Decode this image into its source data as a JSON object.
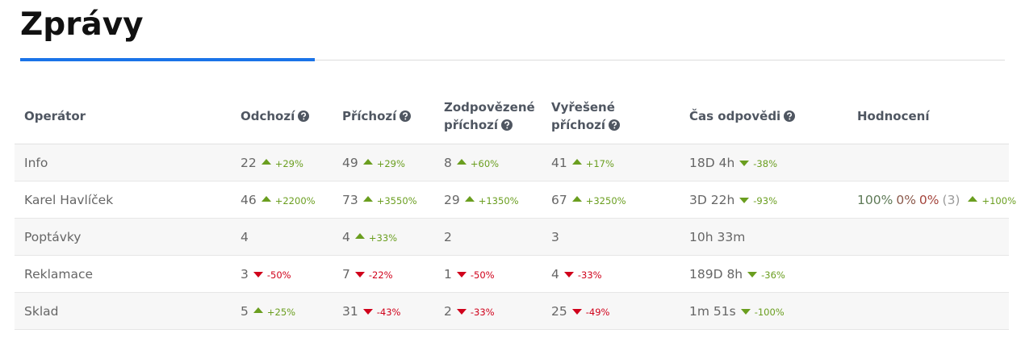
{
  "header": {
    "title": "Zprávy"
  },
  "table": {
    "columns": [
      {
        "label": "Operátor"
      },
      {
        "label": "Odchozí",
        "help": true
      },
      {
        "label": "Příchozí",
        "help": true
      },
      {
        "label": "Zodpovězené příchozí",
        "help": true
      },
      {
        "label": "Vyřešené příchozí",
        "help": true
      },
      {
        "label": "Čas odpovědi",
        "help": true
      },
      {
        "label": "Hodnocení"
      }
    ],
    "rows": [
      {
        "operator": "Info",
        "cells": [
          {
            "value": "22",
            "change": "+29%",
            "arrow": "up",
            "color": "#6a9e1f"
          },
          {
            "value": "49",
            "change": "+29%",
            "arrow": "up",
            "color": "#6a9e1f"
          },
          {
            "value": "8",
            "change": "+60%",
            "arrow": "up",
            "color": "#6a9e1f"
          },
          {
            "value": "41",
            "change": "+17%",
            "arrow": "up",
            "color": "#6a9e1f"
          },
          {
            "value": "18D 4h",
            "change": "-38%",
            "arrow": "down",
            "color": "#6a9e1f"
          }
        ]
      },
      {
        "operator": "Karel Havlíček",
        "cells": [
          {
            "value": "46",
            "change": "+2200%",
            "arrow": "up",
            "color": "#6a9e1f"
          },
          {
            "value": "73",
            "change": "+3550%",
            "arrow": "up",
            "color": "#6a9e1f"
          },
          {
            "value": "29",
            "change": "+1350%",
            "arrow": "up",
            "color": "#6a9e1f"
          },
          {
            "value": "67",
            "change": "+3250%",
            "arrow": "up",
            "color": "#6a9e1f"
          },
          {
            "value": "3D 22h",
            "change": "-93%",
            "arrow": "down",
            "color": "#6a9e1f"
          }
        ],
        "rating": {
          "parts": [
            {
              "text": "100%",
              "color": "#5e7a57"
            },
            {
              "text": "0%",
              "color": "#8c5a4c"
            },
            {
              "text": "0%",
              "color": "#a4443c"
            },
            {
              "text": "(3)",
              "color": "#9a9a9a"
            }
          ],
          "change": "+100%",
          "arrow": "up",
          "color": "#6a9e1f"
        }
      },
      {
        "operator": "Poptávky",
        "cells": [
          {
            "value": "4"
          },
          {
            "value": "4",
            "change": "+33%",
            "arrow": "up",
            "color": "#6a9e1f"
          },
          {
            "value": "2"
          },
          {
            "value": "3"
          },
          {
            "value": "10h 33m"
          }
        ]
      },
      {
        "operator": "Reklamace",
        "cells": [
          {
            "value": "3",
            "change": "-50%",
            "arrow": "down",
            "color": "#d0021b"
          },
          {
            "value": "7",
            "change": "-22%",
            "arrow": "down",
            "color": "#d0021b"
          },
          {
            "value": "1",
            "change": "-50%",
            "arrow": "down",
            "color": "#d0021b"
          },
          {
            "value": "4",
            "change": "-33%",
            "arrow": "down",
            "color": "#d0021b"
          },
          {
            "value": "189D 8h",
            "change": "-36%",
            "arrow": "down",
            "color": "#6a9e1f"
          }
        ]
      },
      {
        "operator": "Sklad",
        "cells": [
          {
            "value": "5",
            "change": "+25%",
            "arrow": "up",
            "color": "#6a9e1f"
          },
          {
            "value": "31",
            "change": "-43%",
            "arrow": "down",
            "color": "#d0021b"
          },
          {
            "value": "2",
            "change": "-33%",
            "arrow": "down",
            "color": "#d0021b"
          },
          {
            "value": "25",
            "change": "-49%",
            "arrow": "down",
            "color": "#d0021b"
          },
          {
            "value": "1m 51s",
            "change": "-100%",
            "arrow": "down",
            "color": "#6a9e1f"
          }
        ]
      }
    ]
  }
}
